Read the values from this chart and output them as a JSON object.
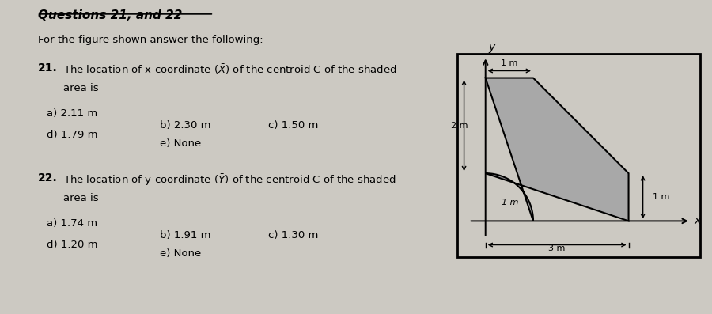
{
  "title": "Questions 21, and 22",
  "q21_intro": "For the figure shown answer the following:",
  "q21_label": "21.",
  "q21_desc1": "The location of x-coordinate ($\\bar{X}$) of the centroid C of the shaded",
  "q21_desc2": "area is",
  "q21_a": "a) 2.11 m",
  "q21_b": "b) 2.30 m",
  "q21_c": "c) 1.50 m",
  "q21_d": "d) 1.79 m",
  "q21_e": "e) None",
  "q22_label": "22.",
  "q22_desc1": "The location of y-coordinate ($\\bar{Y}$) of the centroid C of the shaded",
  "q22_desc2": "area is",
  "q22_a": "a) 1.74 m",
  "q22_b": "b) 1.91 m",
  "q22_c": "c) 1.30 m",
  "q22_d": "d) 1.20 m",
  "q22_e": "e) None",
  "page_bg": "#ccc9c2",
  "text_bg": "#dedad4",
  "fig_bg": "#e0ddd8",
  "shaded_color": "#a8a8a8"
}
